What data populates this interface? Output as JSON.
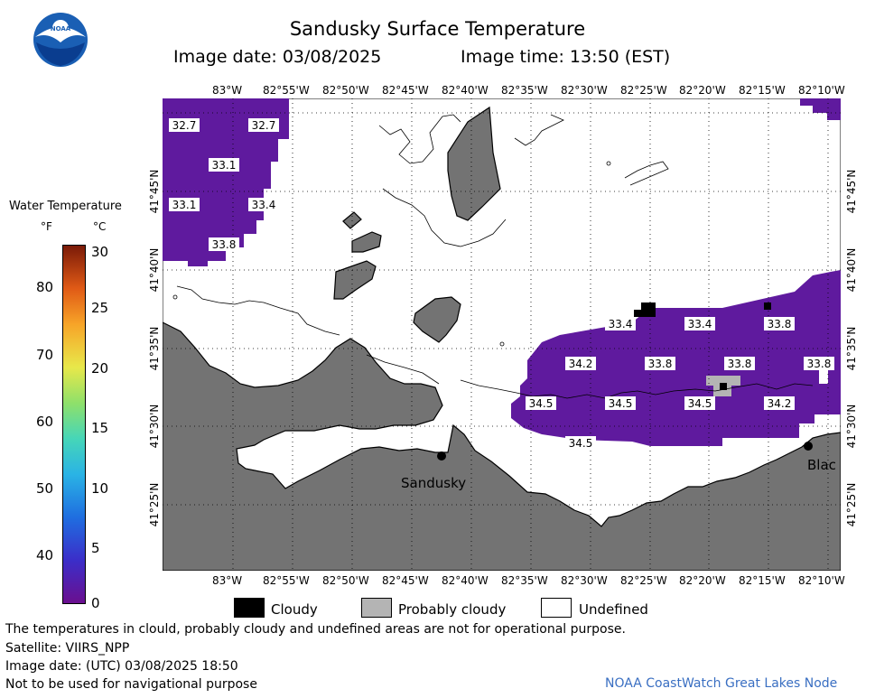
{
  "header": {
    "title": "Sandusky Surface Temperature",
    "image_date": "Image date: 03/08/2025",
    "image_time": "Image time: 13:50 (EST)"
  },
  "legend": {
    "title": "Water Temperature",
    "unit_f": "°F",
    "unit_c": "°C",
    "f_ticks": [
      "80",
      "70",
      "60",
      "50",
      "40"
    ],
    "c_ticks": [
      "30",
      "25",
      "20",
      "15",
      "10",
      "5",
      "0"
    ]
  },
  "axes": {
    "top_lon": [
      "83°W",
      "82°55'W",
      "82°50'W",
      "82°45'W",
      "82°40'W",
      "82°35'W",
      "82°30'W",
      "82°25'W",
      "82°20'W",
      "82°15'W",
      "82°10'W"
    ],
    "bottom_lon": [
      "83°W",
      "82°55'W",
      "82°50'W",
      "82°45'W",
      "82°40'W",
      "82°35'W",
      "82°30'W",
      "82°25'W",
      "82°20'W",
      "82°15'W",
      "82°10'W"
    ],
    "lat": [
      "41°45'N",
      "41°40'N",
      "41°35'N",
      "41°30'N",
      "41°25'N"
    ]
  },
  "places": {
    "sandusky": "Sandusky",
    "bay_partial": "Blac"
  },
  "temperature_labels": [
    "32.7",
    "32.7",
    "33.1",
    "33.1",
    "33.4",
    "33.8",
    "33.4",
    "33.4",
    "33.8",
    "34.2",
    "33.8",
    "33.8",
    "33.8",
    "34.5",
    "34.5",
    "34.5",
    "34.2",
    "34.5"
  ],
  "key": {
    "cloudy": "Cloudy",
    "probably_cloudy": "Probably cloudy",
    "undefined": "Undefined"
  },
  "footer": {
    "disclaimer": "The temperatures in clould, probably cloudy and undefined areas are not for operational purpose.",
    "satellite": "Satellite: VIIRS_NPP",
    "utc_date": "Image date: (UTC) 03/08/2025  18:50",
    "nav_warning": "Not to be used for navigational purpose",
    "credit": "NOAA CoastWatch Great Lakes Node"
  },
  "colors": {
    "water_purple": "#5f1a9e",
    "land_gray": "#737373",
    "cloudy": "#000000",
    "probably_cloudy": "#b4b4b4",
    "undefined": "#ffffff"
  }
}
